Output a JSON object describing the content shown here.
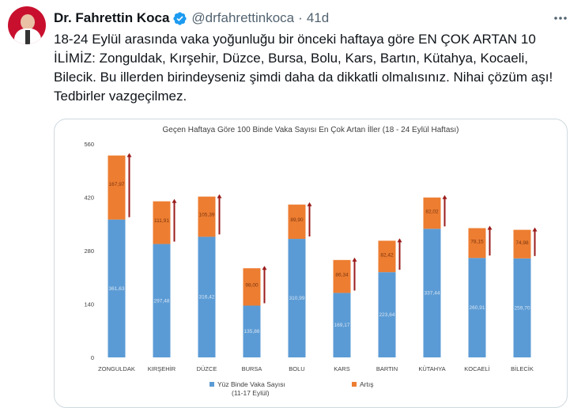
{
  "tweet": {
    "author_name": "Dr. Fahrettin Koca",
    "handle": "@drfahrettinkoca",
    "separator": "·",
    "time": "41d",
    "text": "18-24 Eylül arasında vaka yoğunluğu bir önceki haftaya göre EN ÇOK ARTAN 10 İLİMİZ: Zonguldak, Kırşehir, Düzce, Bursa, Bolu, Kars, Bartın, Kütahya, Kocaeli, Bilecik. Bu illerden birindeyseniz şimdi daha da dikkatli olmalısınız. Nihai çözüm aşı! Tedbirler vazgeçilmez."
  },
  "icons": {
    "verified": "verified-badge-icon",
    "more": "more-options-icon",
    "arrow": "increase-arrow-icon"
  },
  "colors": {
    "verified": "#1d9bf0",
    "blue_series": "#5b9bd5",
    "orange_series": "#ed7d31",
    "arrow": "#9b1b1b"
  },
  "chart_data": {
    "type": "bar",
    "stacked": true,
    "title": "Geçen Haftaya Göre 100 Binde Vaka Sayısı En Çok Artan İller (18 - 24 Eylül Haftası)",
    "categories": [
      "ZONGULDAK",
      "KIRŞEHİR",
      "DÜZCE",
      "BURSA",
      "BOLU",
      "KARS",
      "BARTIN",
      "KÜTAHYA",
      "KOCAELİ",
      "BİLECİK"
    ],
    "series": [
      {
        "name": "Yüz Binde Vaka Sayısı (11-17 Eylül)",
        "legend_line1": "Yüz Binde Vaka Sayısı",
        "legend_line2": "(11-17 Eylül)",
        "color": "#5b9bd5",
        "values": [
          361.63,
          297.48,
          316.42,
          135.86,
          310.99,
          169.17,
          223.64,
          337.44,
          260.91,
          259.7
        ],
        "labels": [
          "361,63",
          "297,48",
          "316,42",
          "135,86",
          "310,99",
          "169,17",
          "223,64",
          "337,44",
          "260,91",
          "259,70"
        ]
      },
      {
        "name": "Artış",
        "color": "#ed7d31",
        "values": [
          167.97,
          111.91,
          105.39,
          98.0,
          89.9,
          86.34,
          82.42,
          82.02,
          78.15,
          74.98
        ],
        "labels": [
          "167,97",
          "111,91",
          "105,39",
          "98,00",
          "89,90",
          "86,34",
          "82,42",
          "82,02",
          "78,15",
          "74,98"
        ]
      }
    ],
    "y_ticks": [
      "0",
      "140",
      "280",
      "420",
      "560"
    ],
    "ylim": [
      0,
      560
    ],
    "grid": false,
    "legend_position": "bottom"
  }
}
